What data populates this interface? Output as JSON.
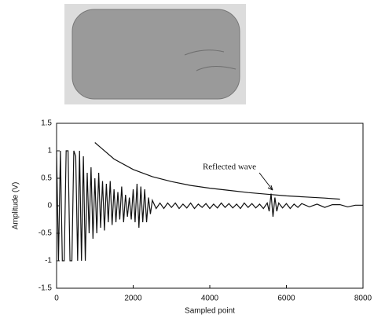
{
  "chart_data": {
    "type": "line",
    "xlabel": "Sampled point",
    "ylabel": "Amplitude (V)",
    "annotation": "Reflected wave",
    "xlim": [
      0,
      8000
    ],
    "xticks": [
      0,
      2000,
      4000,
      6000,
      8000
    ],
    "ylim": [
      -1.5,
      1.5
    ],
    "yticks": [
      1.5,
      1,
      0.5,
      0,
      -0.5,
      -1,
      -1.5
    ],
    "series": [
      {
        "color": "#111111",
        "x": [
          0,
          50,
          100,
          150,
          200,
          250,
          300,
          350,
          400,
          450,
          500,
          550,
          600,
          650,
          700,
          750,
          800,
          850,
          900,
          950,
          1000,
          1050,
          1100,
          1150,
          1200,
          1250,
          1300,
          1350,
          1400,
          1450,
          1500,
          1550,
          1600,
          1650,
          1700,
          1750,
          1800,
          1850,
          1900,
          1950,
          2000,
          2050,
          2100,
          2150,
          2200,
          2250,
          2300,
          2350,
          2400,
          2450,
          2500,
          2600,
          2700,
          2800,
          2900,
          3000,
          3100,
          3200,
          3300,
          3400,
          3500,
          3600,
          3700,
          3800,
          3900,
          4000,
          4100,
          4200,
          4300,
          4400,
          4500,
          4600,
          4700,
          4800,
          4900,
          5000,
          5100,
          5200,
          5300,
          5400,
          5500,
          5550,
          5600,
          5650,
          5700,
          5750,
          5800,
          5900,
          6000,
          6100,
          6200,
          6300,
          6400,
          6600,
          6800,
          7000,
          7200,
          7400,
          7600,
          7800,
          8000
        ],
        "values": [
          1,
          -1,
          1,
          -1,
          -1,
          1,
          1,
          -1,
          -1,
          1,
          0.9,
          -1,
          1,
          -1,
          0.9,
          -1,
          0.6,
          -0.5,
          0.7,
          -0.6,
          0.5,
          -0.5,
          0.6,
          -0.4,
          0.45,
          -0.45,
          0.4,
          -0.3,
          0.45,
          -0.35,
          0.3,
          -0.3,
          0.25,
          -0.25,
          0.35,
          -0.3,
          0.2,
          -0.2,
          0.15,
          -0.25,
          0.3,
          -0.3,
          0.4,
          -0.4,
          0.35,
          -0.3,
          0.3,
          -0.3,
          0.15,
          -0.15,
          0.1,
          -0.05,
          0.05,
          -0.05,
          0.05,
          -0.03,
          0.05,
          -0.05,
          0.03,
          -0.04,
          0.05,
          -0.05,
          0.03,
          -0.03,
          0.04,
          -0.05,
          0.03,
          -0.04,
          0.05,
          -0.03,
          0.04,
          -0.04,
          0.03,
          -0.05,
          0.05,
          -0.03,
          0.04,
          -0.04,
          0.03,
          -0.05,
          0.05,
          -0.1,
          0.22,
          -0.2,
          0.15,
          -0.1,
          0.05,
          -0.04,
          0.04,
          -0.05,
          0.03,
          -0.03,
          0.04,
          -0.02,
          0.03,
          -0.03,
          0.02,
          0.02,
          -0.02,
          0.01,
          0.01
        ]
      },
      {
        "color": "#111111",
        "x": [
          1000,
          1500,
          2000,
          2500,
          3000,
          3500,
          4000,
          4500,
          5000,
          5500,
          6000,
          6500,
          7000,
          7400
        ],
        "values": [
          1.15,
          0.85,
          0.66,
          0.53,
          0.44,
          0.37,
          0.32,
          0.28,
          0.24,
          0.21,
          0.18,
          0.16,
          0.14,
          0.12
        ]
      }
    ]
  }
}
